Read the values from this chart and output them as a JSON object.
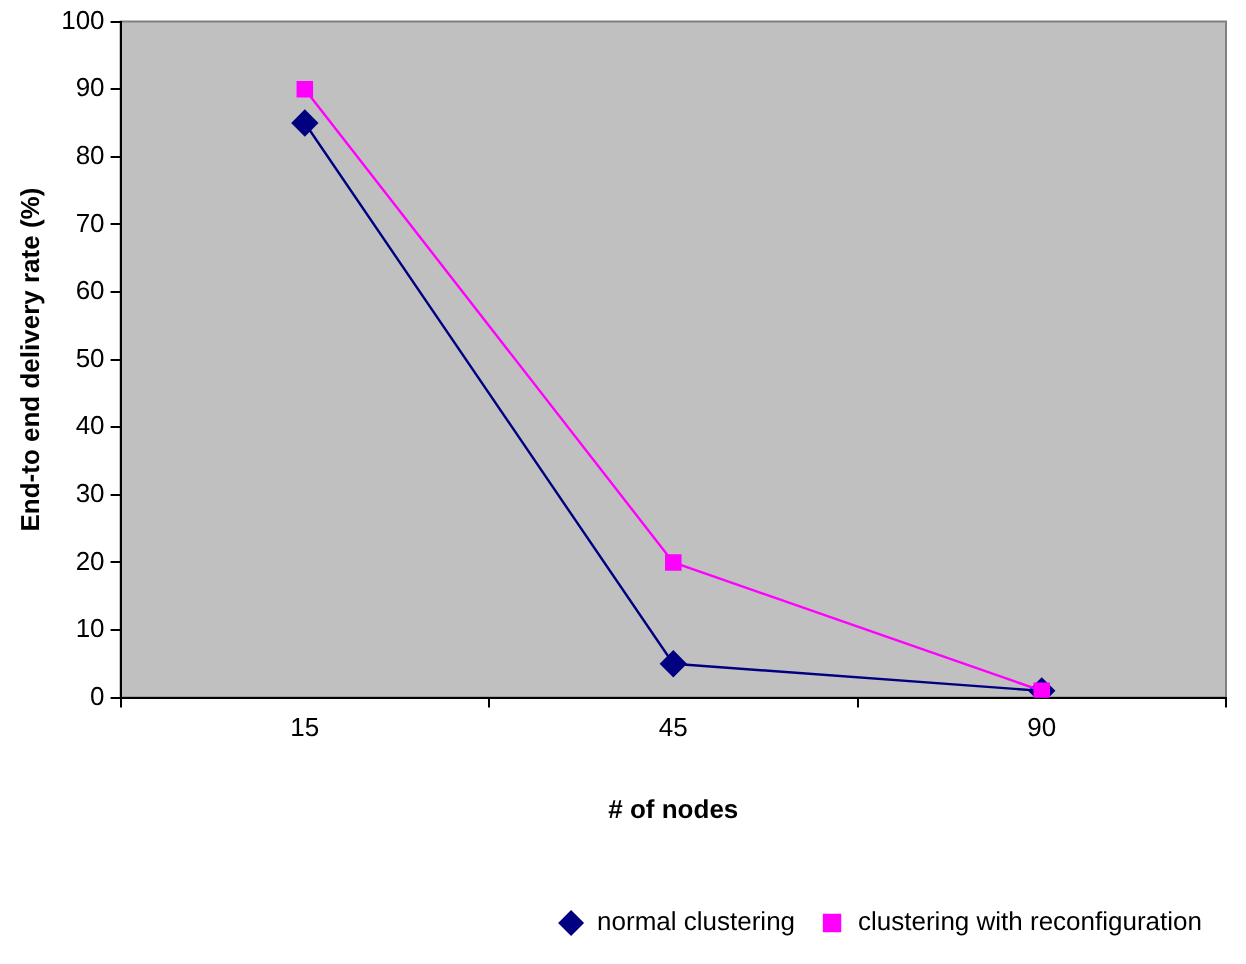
{
  "chart_data": {
    "type": "line",
    "xlabel": "# of nodes",
    "ylabel": "End-to end delivery rate (%)",
    "categories": [
      "15",
      "45",
      "90"
    ],
    "series": [
      {
        "name": "normal clustering",
        "color": "#000080",
        "marker": "diamond",
        "values": [
          85,
          5,
          1
        ]
      },
      {
        "name": "clustering with reconfiguration",
        "color": "#ff00ff",
        "marker": "square",
        "values": [
          90,
          20,
          1
        ]
      }
    ],
    "ylim": [
      0,
      100
    ],
    "yticks": [
      0,
      10,
      20,
      30,
      40,
      50,
      60,
      70,
      80,
      90,
      100
    ],
    "grid": false,
    "legend": "bottom"
  }
}
